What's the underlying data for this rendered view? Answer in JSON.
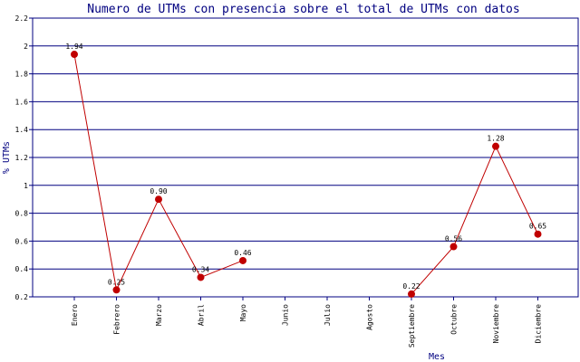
{
  "chart_data": {
    "type": "line",
    "title": "Numero de UTMs con presencia sobre el total de UTMs con datos",
    "xlabel": "Mes",
    "ylabel": "% UTMs",
    "categories": [
      "Enero",
      "Febrero",
      "Marzo",
      "Abril",
      "Mayo",
      "Junio",
      "Julio",
      "Agosto",
      "Septiembre",
      "Octubre",
      "Noviembre",
      "Diciembre"
    ],
    "ylim": [
      0.2,
      2.2
    ],
    "yticks": [
      "0.2",
      "0.4",
      "0.6",
      "0.8",
      "1",
      "1.2",
      "1.4",
      "1.6",
      "1.8",
      "2",
      "2.2"
    ],
    "grid": true,
    "series": [
      {
        "values": [
          1.94,
          0.25,
          0.9,
          0.34,
          0.46,
          null,
          null,
          null,
          0.22,
          0.56,
          1.28,
          0.65
        ],
        "labels": [
          "1.94",
          "0.25",
          "0.90",
          "0.34",
          "0.46",
          null,
          null,
          null,
          "0.22",
          "0.56",
          "1.28",
          "0.65"
        ],
        "color": "#c00000"
      }
    ],
    "colors": {
      "axis": "#000080",
      "title": "#000080",
      "series": "#c00000"
    }
  }
}
